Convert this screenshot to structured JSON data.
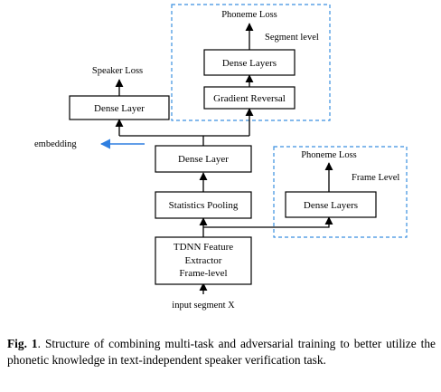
{
  "diagram": {
    "boxes": {
      "tdnn": [
        "TDNN Feature",
        "Extractor",
        "Frame-level"
      ],
      "stats_pooling": "Statistics Pooling",
      "dense_mid": "Dense Layer",
      "dense_speaker": "Dense Layer",
      "gradient_reversal": "Gradient Reversal",
      "dense_segment": "Dense Layers",
      "dense_frame": "Dense Layers"
    },
    "labels": {
      "input": "input segment X",
      "embedding": "embedding",
      "speaker_loss": "Speaker Loss",
      "phoneme_loss_segment": "Phoneme Loss",
      "phoneme_loss_frame": "Phoneme Loss",
      "segment_level": "Segment level",
      "frame_level": "Frame Level"
    },
    "colors": {
      "dashed_border": "#3a8fe0",
      "embedding_arrow": "#2f7fe0"
    }
  },
  "caption": {
    "label": "Fig. 1",
    "text": ".  Structure of combining multi-task and adversarial training to better utilize the phonetic knowledge in text-independent speaker verification task."
  }
}
